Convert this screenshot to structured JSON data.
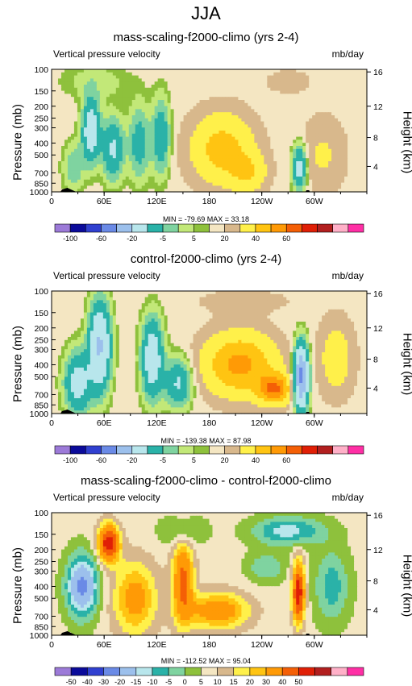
{
  "header": {
    "title": "JJA"
  },
  "common": {
    "variable_label": "Vertical pressure velocity",
    "units": "mb/day",
    "left_axis_label": "Pressure (mb)",
    "right_axis_label": "Height (km)",
    "pressure_ticks": [
      "100",
      "150",
      "200",
      "250",
      "300",
      "400",
      "500",
      "700",
      "850",
      "1000"
    ],
    "height_ticks": [
      "16",
      "12",
      "8",
      "4"
    ],
    "lon_ticks": [
      "0",
      "60E",
      "120E",
      "180",
      "120W",
      "60W"
    ]
  },
  "panels": [
    {
      "title": "mass-scaling-f2000-climo (yrs 2-4)",
      "minmax": "MIN = -79.69  MAX = 33.18",
      "colorbar_labels": [
        "-100",
        "-60",
        "-20",
        "-5",
        "5",
        "20",
        "40",
        "60"
      ]
    },
    {
      "title": "control-f2000-climo (yrs 2-4)",
      "minmax": "MIN = -139.38  MAX = 87.98",
      "colorbar_labels": [
        "-100",
        "-60",
        "-20",
        "-5",
        "5",
        "20",
        "40",
        "60"
      ]
    },
    {
      "title": "mass-scaling-f2000-climo - control-f2000-climo",
      "minmax": "MIN = -112.52  MAX = 95.04",
      "colorbar_labels": [
        "-50",
        "-40",
        "-30",
        "-20",
        "-15",
        "-10",
        "-5",
        "0",
        "5",
        "10",
        "15",
        "20",
        "30",
        "40",
        "50"
      ]
    }
  ],
  "chart_data": [
    {
      "type": "heatmap",
      "title": "mass-scaling-f2000-climo (yrs 2-4)",
      "variable": "Vertical pressure velocity",
      "units": "mb/day",
      "x_axis": "longitude",
      "x_ticks": [
        "0",
        "60E",
        "120E",
        "180",
        "120W",
        "60W"
      ],
      "y_axis": "Pressure (mb)",
      "y_scale": "log",
      "y_range": [
        1000,
        100
      ],
      "y2_axis": "Height (km)",
      "y2_ticks": [
        16,
        12,
        8,
        4
      ],
      "min": -79.69,
      "max": 33.18,
      "color_levels": [
        -120,
        -100,
        -80,
        -60,
        -40,
        -20,
        -10,
        -5,
        -1,
        1,
        5,
        10,
        20,
        30,
        40,
        50,
        60,
        80
      ],
      "colors": [
        "#9c7ad8",
        "#0b0b9a",
        "#3040d0",
        "#6a8ae6",
        "#9cc0ec",
        "#b8e6ec",
        "#2ab2a8",
        "#7fd3a0",
        "#c2e878",
        "#8ec13c",
        "#f4e6c2",
        "#d8b88c",
        "#fff04a",
        "#ffc412",
        "#ff9a06",
        "#f45f06",
        "#e01f06",
        "#b21f1f",
        "#ffb0c8",
        "#ff2fa5"
      ]
    },
    {
      "type": "heatmap",
      "title": "control-f2000-climo (yrs 2-4)",
      "variable": "Vertical pressure velocity",
      "units": "mb/day",
      "x_axis": "longitude",
      "x_ticks": [
        "0",
        "60E",
        "120E",
        "180",
        "120W",
        "60W"
      ],
      "y_axis": "Pressure (mb)",
      "y_scale": "log",
      "y_range": [
        1000,
        100
      ],
      "y2_axis": "Height (km)",
      "y2_ticks": [
        16,
        12,
        8,
        4
      ],
      "min": -139.38,
      "max": 87.98,
      "color_levels": [
        -120,
        -100,
        -80,
        -60,
        -40,
        -20,
        -10,
        -5,
        -1,
        1,
        5,
        10,
        20,
        30,
        40,
        50,
        60,
        80
      ],
      "colors": [
        "#9c7ad8",
        "#0b0b9a",
        "#3040d0",
        "#6a8ae6",
        "#9cc0ec",
        "#b8e6ec",
        "#2ab2a8",
        "#7fd3a0",
        "#c2e878",
        "#8ec13c",
        "#f4e6c2",
        "#d8b88c",
        "#fff04a",
        "#ffc412",
        "#ff9a06",
        "#f45f06",
        "#e01f06",
        "#b21f1f",
        "#ffb0c8",
        "#ff2fa5"
      ]
    },
    {
      "type": "heatmap",
      "title": "mass-scaling-f2000-climo - control-f2000-climo",
      "variable": "Vertical pressure velocity",
      "units": "mb/day",
      "x_axis": "longitude",
      "x_ticks": [
        "0",
        "60E",
        "120E",
        "180",
        "120W",
        "60W"
      ],
      "y_axis": "Pressure (mb)",
      "y_scale": "log",
      "y_range": [
        1000,
        100
      ],
      "y2_axis": "Height (km)",
      "y2_ticks": [
        16,
        12,
        8,
        4
      ],
      "min": -112.52,
      "max": 95.04,
      "color_levels": [
        -60,
        -50,
        -40,
        -30,
        -20,
        -15,
        -10,
        -5,
        0,
        5,
        10,
        15,
        20,
        30,
        40,
        50,
        60
      ],
      "colors": [
        "#9c7ad8",
        "#0b0b9a",
        "#3040d0",
        "#6a8ae6",
        "#9cc0ec",
        "#b8e6ec",
        "#2ab2a8",
        "#7fd3a0",
        "#8ec13c",
        "#f4e6c2",
        "#d8b88c",
        "#fff04a",
        "#ffc412",
        "#ff9a06",
        "#f45f06",
        "#e01f06",
        "#b21f1f",
        "#ffb0c8",
        "#ff2fa5"
      ]
    }
  ]
}
